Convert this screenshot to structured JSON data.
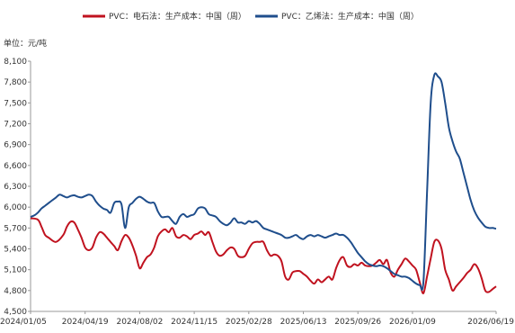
{
  "chart_data": {
    "type": "line",
    "unit_label": "单位：元/吨",
    "ylim": [
      4500,
      8100
    ],
    "yticks": [
      "8,100",
      "7,800",
      "7,500",
      "7,200",
      "6,900",
      "6,600",
      "6,300",
      "6,000",
      "5,700",
      "5,400",
      "5,100",
      "4,800",
      "4,500"
    ],
    "ytick_values": [
      8100,
      7800,
      7500,
      7200,
      6900,
      6600,
      6300,
      6000,
      5700,
      5400,
      5100,
      4800,
      4500
    ],
    "xlim": [
      "2024-01-05",
      "2026-06-19"
    ],
    "xticks": [
      "2024/01/05",
      "2024/04/19",
      "2024/08/02",
      "2024/11/15",
      "2025/02/28",
      "2025/06/13",
      "2025/09/26",
      "2026/01/09",
      "2026/06/19"
    ],
    "xtick_dates": [
      "2024-01-05",
      "2024-04-19",
      "2024-08-02",
      "2024-11-15",
      "2025-02-28",
      "2025-06-13",
      "2025-09-26",
      "2026-01-09",
      "2026-06-19"
    ],
    "grid": false,
    "legend_position": "top",
    "series": [
      {
        "name": "PVC：电石法：生产成本：中国（周）",
        "color": "#c0121f",
        "points": [
          [
            "2024-01-05",
            5840
          ],
          [
            "2024-01-19",
            5820
          ],
          [
            "2024-01-26",
            5720
          ],
          [
            "2024-02-02",
            5600
          ],
          [
            "2024-02-09",
            5560
          ],
          [
            "2024-02-23",
            5500
          ],
          [
            "2024-03-08",
            5600
          ],
          [
            "2024-03-15",
            5720
          ],
          [
            "2024-03-22",
            5790
          ],
          [
            "2024-03-29",
            5780
          ],
          [
            "2024-04-05",
            5680
          ],
          [
            "2024-04-12",
            5560
          ],
          [
            "2024-04-19",
            5420
          ],
          [
            "2024-04-26",
            5380
          ],
          [
            "2024-05-03",
            5420
          ],
          [
            "2024-05-10",
            5560
          ],
          [
            "2024-05-17",
            5640
          ],
          [
            "2024-05-24",
            5620
          ],
          [
            "2024-05-31",
            5560
          ],
          [
            "2024-06-07",
            5500
          ],
          [
            "2024-06-14",
            5440
          ],
          [
            "2024-06-21",
            5380
          ],
          [
            "2024-06-28",
            5510
          ],
          [
            "2024-07-05",
            5600
          ],
          [
            "2024-07-12",
            5560
          ],
          [
            "2024-07-19",
            5450
          ],
          [
            "2024-07-26",
            5300
          ],
          [
            "2024-08-02",
            5120
          ],
          [
            "2024-08-09",
            5200
          ],
          [
            "2024-08-16",
            5280
          ],
          [
            "2024-08-23",
            5320
          ],
          [
            "2024-08-30",
            5420
          ],
          [
            "2024-09-06",
            5580
          ],
          [
            "2024-09-13",
            5650
          ],
          [
            "2024-09-20",
            5680
          ],
          [
            "2024-09-27",
            5640
          ],
          [
            "2024-10-04",
            5700
          ],
          [
            "2024-10-11",
            5580
          ],
          [
            "2024-10-18",
            5560
          ],
          [
            "2024-10-25",
            5600
          ],
          [
            "2024-11-01",
            5580
          ],
          [
            "2024-11-08",
            5540
          ],
          [
            "2024-11-15",
            5600
          ],
          [
            "2024-11-22",
            5620
          ],
          [
            "2024-11-29",
            5650
          ],
          [
            "2024-12-06",
            5600
          ],
          [
            "2024-12-13",
            5640
          ],
          [
            "2024-12-20",
            5500
          ],
          [
            "2024-12-27",
            5360
          ],
          [
            "2025-01-03",
            5300
          ],
          [
            "2025-01-10",
            5320
          ],
          [
            "2025-01-17",
            5380
          ],
          [
            "2025-01-24",
            5420
          ],
          [
            "2025-01-31",
            5400
          ],
          [
            "2025-02-07",
            5300
          ],
          [
            "2025-02-14",
            5280
          ],
          [
            "2025-02-21",
            5300
          ],
          [
            "2025-02-28",
            5400
          ],
          [
            "2025-03-07",
            5480
          ],
          [
            "2025-03-14",
            5500
          ],
          [
            "2025-03-21",
            5500
          ],
          [
            "2025-03-28",
            5500
          ],
          [
            "2025-04-04",
            5380
          ],
          [
            "2025-04-11",
            5300
          ],
          [
            "2025-04-18",
            5320
          ],
          [
            "2025-04-25",
            5300
          ],
          [
            "2025-05-02",
            5220
          ],
          [
            "2025-05-09",
            5000
          ],
          [
            "2025-05-16",
            4960
          ],
          [
            "2025-05-23",
            5060
          ],
          [
            "2025-05-30",
            5080
          ],
          [
            "2025-06-06",
            5080
          ],
          [
            "2025-06-13",
            5040
          ],
          [
            "2025-06-20",
            5000
          ],
          [
            "2025-06-27",
            4940
          ],
          [
            "2025-07-04",
            4900
          ],
          [
            "2025-07-11",
            4960
          ],
          [
            "2025-07-18",
            4920
          ],
          [
            "2025-07-25",
            4960
          ],
          [
            "2025-08-01",
            5000
          ],
          [
            "2025-08-08",
            4960
          ],
          [
            "2025-08-15",
            5120
          ],
          [
            "2025-08-22",
            5240
          ],
          [
            "2025-08-29",
            5280
          ],
          [
            "2025-09-05",
            5160
          ],
          [
            "2025-09-12",
            5140
          ],
          [
            "2025-09-19",
            5180
          ],
          [
            "2025-09-26",
            5160
          ],
          [
            "2025-10-03",
            5200
          ],
          [
            "2025-10-10",
            5160
          ],
          [
            "2025-10-17",
            5150
          ],
          [
            "2025-10-24",
            5160
          ],
          [
            "2025-10-31",
            5200
          ],
          [
            "2025-11-07",
            5240
          ],
          [
            "2025-11-14",
            5180
          ],
          [
            "2025-11-21",
            5240
          ],
          [
            "2025-11-28",
            5060
          ],
          [
            "2025-12-05",
            5000
          ],
          [
            "2025-12-12",
            5100
          ],
          [
            "2025-12-19",
            5180
          ],
          [
            "2025-12-26",
            5260
          ],
          [
            "2026-01-02",
            5220
          ],
          [
            "2026-01-09",
            5160
          ],
          [
            "2026-01-16",
            5100
          ],
          [
            "2026-01-23",
            4920
          ],
          [
            "2026-01-30",
            4760
          ],
          [
            "2026-02-06",
            5000
          ],
          [
            "2026-02-13",
            5260
          ],
          [
            "2026-02-20",
            5500
          ],
          [
            "2026-02-27",
            5520
          ],
          [
            "2026-03-06",
            5400
          ],
          [
            "2026-03-13",
            5100
          ],
          [
            "2026-03-20",
            4960
          ],
          [
            "2026-03-27",
            4800
          ],
          [
            "2026-04-03",
            4860
          ],
          [
            "2026-04-10",
            4920
          ],
          [
            "2026-04-17",
            4980
          ],
          [
            "2026-04-24",
            5050
          ],
          [
            "2026-05-01",
            5100
          ],
          [
            "2026-05-08",
            5180
          ],
          [
            "2026-05-15",
            5120
          ],
          [
            "2026-05-22",
            4980
          ],
          [
            "2026-05-29",
            4800
          ],
          [
            "2026-06-05",
            4780
          ],
          [
            "2026-06-12",
            4820
          ],
          [
            "2026-06-19",
            4860
          ]
        ]
      },
      {
        "name": "PVC：乙烯法：生产成本：中国（周）",
        "color": "#1f4e8c",
        "points": [
          [
            "2024-01-05",
            5860
          ],
          [
            "2024-01-12",
            5880
          ],
          [
            "2024-01-19",
            5920
          ],
          [
            "2024-01-26",
            5980
          ],
          [
            "2024-02-02",
            6020
          ],
          [
            "2024-02-09",
            6060
          ],
          [
            "2024-02-16",
            6100
          ],
          [
            "2024-02-23",
            6140
          ],
          [
            "2024-03-01",
            6180
          ],
          [
            "2024-03-08",
            6160
          ],
          [
            "2024-03-15",
            6140
          ],
          [
            "2024-03-22",
            6160
          ],
          [
            "2024-03-29",
            6170
          ],
          [
            "2024-04-05",
            6150
          ],
          [
            "2024-04-12",
            6140
          ],
          [
            "2024-04-19",
            6160
          ],
          [
            "2024-04-26",
            6180
          ],
          [
            "2024-05-03",
            6160
          ],
          [
            "2024-05-10",
            6080
          ],
          [
            "2024-05-17",
            6020
          ],
          [
            "2024-05-24",
            5980
          ],
          [
            "2024-05-31",
            5960
          ],
          [
            "2024-06-07",
            5920
          ],
          [
            "2024-06-14",
            6060
          ],
          [
            "2024-06-21",
            6080
          ],
          [
            "2024-06-28",
            6040
          ],
          [
            "2024-07-05",
            5700
          ],
          [
            "2024-07-12",
            6000
          ],
          [
            "2024-07-19",
            6060
          ],
          [
            "2024-07-26",
            6120
          ],
          [
            "2024-08-02",
            6150
          ],
          [
            "2024-08-09",
            6120
          ],
          [
            "2024-08-16",
            6080
          ],
          [
            "2024-08-23",
            6060
          ],
          [
            "2024-08-30",
            6060
          ],
          [
            "2024-09-06",
            5940
          ],
          [
            "2024-09-13",
            5860
          ],
          [
            "2024-09-20",
            5860
          ],
          [
            "2024-09-27",
            5860
          ],
          [
            "2024-10-04",
            5800
          ],
          [
            "2024-10-11",
            5760
          ],
          [
            "2024-10-18",
            5860
          ],
          [
            "2024-10-25",
            5900
          ],
          [
            "2024-11-01",
            5860
          ],
          [
            "2024-11-08",
            5880
          ],
          [
            "2024-11-15",
            5900
          ],
          [
            "2024-11-22",
            5980
          ],
          [
            "2024-11-29",
            6000
          ],
          [
            "2024-12-06",
            5980
          ],
          [
            "2024-12-13",
            5900
          ],
          [
            "2024-12-20",
            5880
          ],
          [
            "2024-12-27",
            5860
          ],
          [
            "2025-01-03",
            5800
          ],
          [
            "2025-01-10",
            5760
          ],
          [
            "2025-01-17",
            5740
          ],
          [
            "2025-01-24",
            5780
          ],
          [
            "2025-01-31",
            5840
          ],
          [
            "2025-02-07",
            5780
          ],
          [
            "2025-02-14",
            5780
          ],
          [
            "2025-02-21",
            5760
          ],
          [
            "2025-02-28",
            5800
          ],
          [
            "2025-03-07",
            5780
          ],
          [
            "2025-03-14",
            5800
          ],
          [
            "2025-03-21",
            5760
          ],
          [
            "2025-03-28",
            5700
          ],
          [
            "2025-04-04",
            5680
          ],
          [
            "2025-04-11",
            5660
          ],
          [
            "2025-04-18",
            5640
          ],
          [
            "2025-04-25",
            5620
          ],
          [
            "2025-05-02",
            5600
          ],
          [
            "2025-05-09",
            5560
          ],
          [
            "2025-05-16",
            5560
          ],
          [
            "2025-05-23",
            5580
          ],
          [
            "2025-05-30",
            5600
          ],
          [
            "2025-06-06",
            5560
          ],
          [
            "2025-06-13",
            5540
          ],
          [
            "2025-06-20",
            5580
          ],
          [
            "2025-06-27",
            5600
          ],
          [
            "2025-07-04",
            5580
          ],
          [
            "2025-07-11",
            5600
          ],
          [
            "2025-07-18",
            5580
          ],
          [
            "2025-07-25",
            5560
          ],
          [
            "2025-08-01",
            5580
          ],
          [
            "2025-08-08",
            5600
          ],
          [
            "2025-08-15",
            5620
          ],
          [
            "2025-08-22",
            5600
          ],
          [
            "2025-08-29",
            5600
          ],
          [
            "2025-09-05",
            5560
          ],
          [
            "2025-09-12",
            5500
          ],
          [
            "2025-09-19",
            5420
          ],
          [
            "2025-09-26",
            5340
          ],
          [
            "2025-10-03",
            5280
          ],
          [
            "2025-10-10",
            5220
          ],
          [
            "2025-10-17",
            5180
          ],
          [
            "2025-10-24",
            5160
          ],
          [
            "2025-10-31",
            5150
          ],
          [
            "2025-11-07",
            5160
          ],
          [
            "2025-11-14",
            5150
          ],
          [
            "2025-11-21",
            5120
          ],
          [
            "2025-11-28",
            5080
          ],
          [
            "2025-12-05",
            5040
          ],
          [
            "2025-12-12",
            5020
          ],
          [
            "2025-12-19",
            5000
          ],
          [
            "2025-12-26",
            5000
          ],
          [
            "2026-01-02",
            4980
          ],
          [
            "2026-01-09",
            4940
          ],
          [
            "2026-01-16",
            4900
          ],
          [
            "2026-01-23",
            4880
          ],
          [
            "2026-01-30",
            4920
          ],
          [
            "2026-02-06",
            6200
          ],
          [
            "2026-02-13",
            7500
          ],
          [
            "2026-02-20",
            7900
          ],
          [
            "2026-02-27",
            7880
          ],
          [
            "2026-03-06",
            7800
          ],
          [
            "2026-03-13",
            7500
          ],
          [
            "2026-03-20",
            7150
          ],
          [
            "2026-03-27",
            6950
          ],
          [
            "2026-04-03",
            6800
          ],
          [
            "2026-04-10",
            6700
          ],
          [
            "2026-04-17",
            6500
          ],
          [
            "2026-04-24",
            6300
          ],
          [
            "2026-05-01",
            6100
          ],
          [
            "2026-05-08",
            5950
          ],
          [
            "2026-05-15",
            5850
          ],
          [
            "2026-05-22",
            5780
          ],
          [
            "2026-05-29",
            5720
          ],
          [
            "2026-06-05",
            5700
          ],
          [
            "2026-06-12",
            5700
          ],
          [
            "2026-06-19",
            5690
          ]
        ]
      }
    ]
  }
}
